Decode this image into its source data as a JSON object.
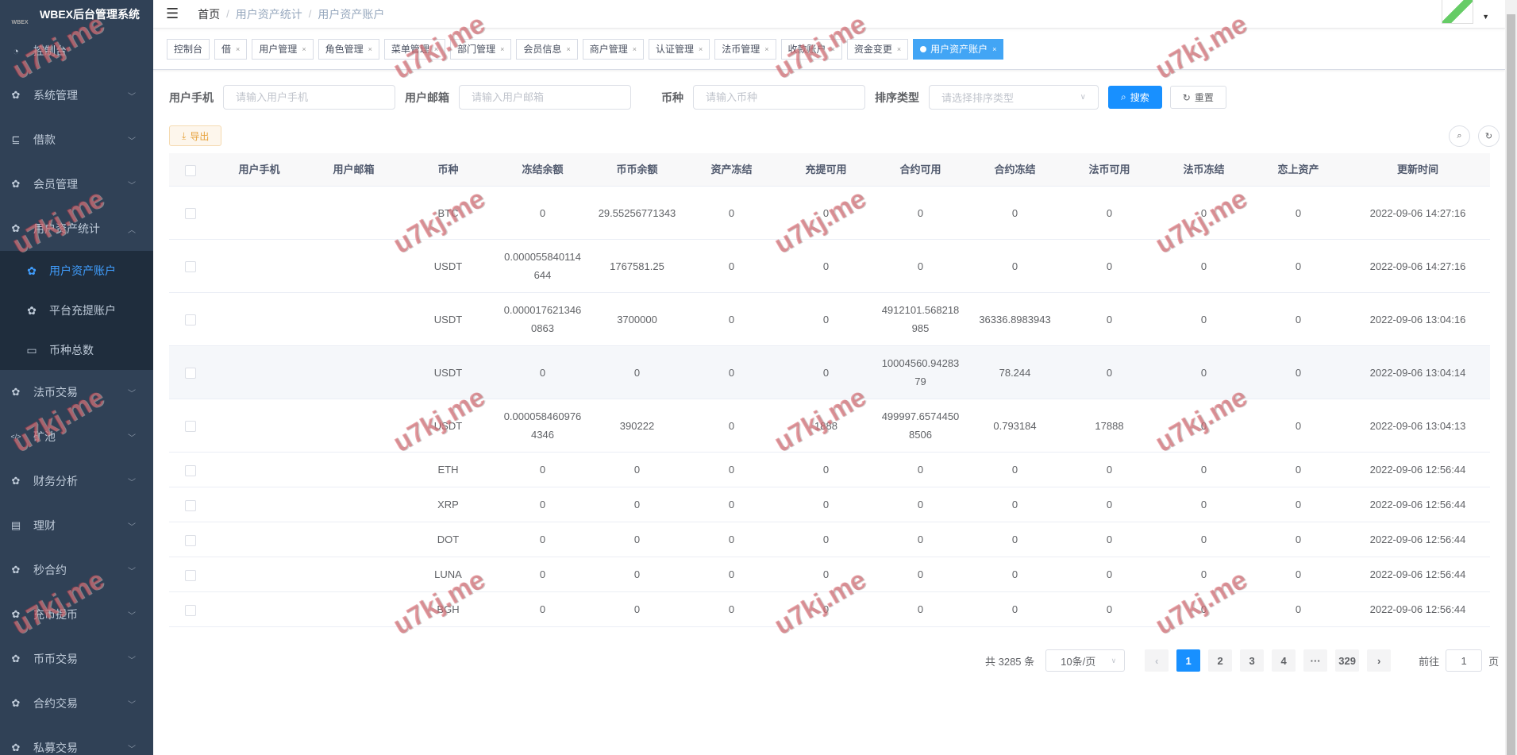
{
  "app": {
    "title": "WBEX后台管理系统",
    "logo_text": "WBEX"
  },
  "sidebar": {
    "items": [
      {
        "label": "控制台",
        "icon": "dashboard-icon"
      },
      {
        "label": "系统管理",
        "icon": "gear-icon"
      },
      {
        "label": "借款",
        "icon": "loan-icon"
      },
      {
        "label": "会员管理",
        "icon": "gear-icon"
      },
      {
        "label": "用户资产统计",
        "icon": "gear-icon",
        "expanded": true,
        "children": [
          {
            "label": "用户资产账户",
            "icon": "gear-icon",
            "active": true
          },
          {
            "label": "平台充提账户",
            "icon": "gear-icon"
          },
          {
            "label": "币种总数",
            "icon": "calendar-icon"
          }
        ]
      },
      {
        "label": "法币交易",
        "icon": "gear-icon"
      },
      {
        "label": "矿池",
        "icon": "code-icon"
      },
      {
        "label": "财务分析",
        "icon": "gear-icon"
      },
      {
        "label": "理财",
        "icon": "chart-icon"
      },
      {
        "label": "秒合约",
        "icon": "gear-icon"
      },
      {
        "label": "充币提币",
        "icon": "gear-icon"
      },
      {
        "label": "币币交易",
        "icon": "gear-icon"
      },
      {
        "label": "合约交易",
        "icon": "gear-icon"
      },
      {
        "label": "私募交易",
        "icon": "gear-icon"
      }
    ]
  },
  "breadcrumb": [
    "首页",
    "用户资产统计",
    "用户资产账户"
  ],
  "tabs": [
    {
      "label": "控制台",
      "closable": false
    },
    {
      "label": "借",
      "closable": true
    },
    {
      "label": "用户管理",
      "closable": true
    },
    {
      "label": "角色管理",
      "closable": true
    },
    {
      "label": "菜单管理",
      "closable": true
    },
    {
      "label": "部门管理",
      "closable": true
    },
    {
      "label": "会员信息",
      "closable": true
    },
    {
      "label": "商户管理",
      "closable": true
    },
    {
      "label": "认证管理",
      "closable": true
    },
    {
      "label": "法币管理",
      "closable": true
    },
    {
      "label": "收款账户",
      "closable": true
    },
    {
      "label": "资金变更",
      "closable": true
    },
    {
      "label": "用户资产账户",
      "closable": true,
      "active": true
    }
  ],
  "filters": {
    "phone_label": "用户手机",
    "phone_placeholder": "请输入用户手机",
    "email_label": "用户邮箱",
    "email_placeholder": "请输入用户邮箱",
    "coin_label": "币种",
    "coin_placeholder": "请输入币种",
    "sort_label": "排序类型",
    "sort_placeholder": "请选择排序类型",
    "search_label": "搜索",
    "reset_label": "重置"
  },
  "toolbar": {
    "export_label": "导出"
  },
  "table": {
    "columns": [
      "用户手机",
      "用户邮箱",
      "币种",
      "冻结余额",
      "币币余额",
      "资产冻结",
      "充提可用",
      "合约可用",
      "合约冻结",
      "法币可用",
      "法币冻结",
      "恋上资产",
      "更新时间"
    ],
    "rows": [
      [
        "",
        "",
        "BTC",
        "0",
        "29.55256771343",
        "0",
        "0",
        "0",
        "0",
        "0",
        "0",
        "0",
        "2022-09-06 14:27:16"
      ],
      [
        "",
        "",
        "USDT",
        "0.000055840114644",
        "1767581.25",
        "0",
        "0",
        "0",
        "0",
        "0",
        "0",
        "0",
        "2022-09-06 14:27:16"
      ],
      [
        "",
        "",
        "USDT",
        "0.0000176213460863",
        "3700000",
        "0",
        "0",
        "4912101.568218985",
        "36336.8983943",
        "0",
        "0",
        "0",
        "2022-09-06 13:04:16"
      ],
      [
        "",
        "",
        "USDT",
        "0",
        "0",
        "0",
        "0",
        "10004560.9428379",
        "78.244",
        "0",
        "0",
        "0",
        "2022-09-06 13:04:14"
      ],
      [
        "",
        "",
        "USDT",
        "0.0000584609764346",
        "390222",
        "0",
        "1888",
        "499997.65744508506",
        "0.793184",
        "17888",
        "0",
        "0",
        "2022-09-06 13:04:13"
      ],
      [
        "",
        "",
        "ETH",
        "0",
        "0",
        "0",
        "0",
        "0",
        "0",
        "0",
        "0",
        "0",
        "2022-09-06 12:56:44"
      ],
      [
        "",
        "",
        "XRP",
        "0",
        "0",
        "0",
        "0",
        "0",
        "0",
        "0",
        "0",
        "0",
        "2022-09-06 12:56:44"
      ],
      [
        "",
        "",
        "DOT",
        "0",
        "0",
        "0",
        "0",
        "0",
        "0",
        "0",
        "0",
        "0",
        "2022-09-06 12:56:44"
      ],
      [
        "",
        "",
        "LUNA",
        "0",
        "0",
        "0",
        "0",
        "0",
        "0",
        "0",
        "0",
        "0",
        "2022-09-06 12:56:44"
      ],
      [
        "",
        "",
        "BGH",
        "0",
        "0",
        "0",
        "0",
        "0",
        "0",
        "0",
        "0",
        "0",
        "2022-09-06 12:56:44"
      ]
    ]
  },
  "pagination": {
    "total_text": "共 3285 条",
    "page_size": "10条/页",
    "pages": [
      "1",
      "2",
      "3",
      "4",
      "···",
      "329"
    ],
    "current": "1",
    "goto_label": "前往",
    "goto_value": "1",
    "page_suffix": "页"
  },
  "watermark": "u7kj.me",
  "colors": {
    "sidebar_bg": "#304156",
    "accent": "#1890ff",
    "active_tab": "#42a5f5",
    "export": "#e6a23c"
  }
}
